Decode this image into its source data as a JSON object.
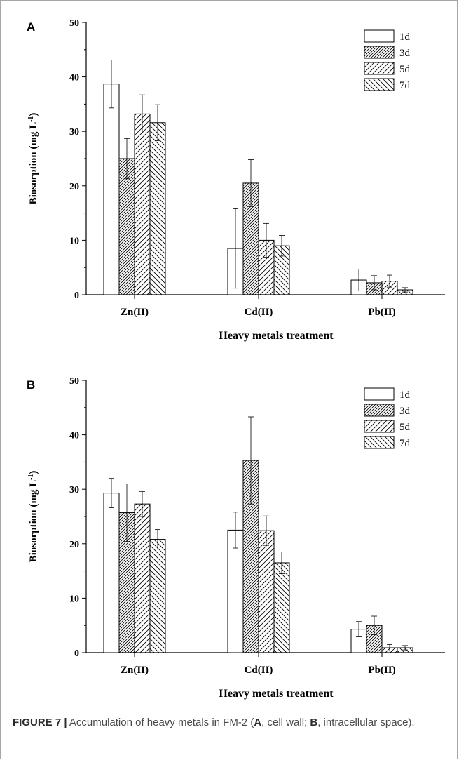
{
  "chart_data": [
    {
      "type": "bar",
      "panel_label": "A",
      "title": "",
      "xlabel": "Heavy metals treatment",
      "ylabel": "Biosorption (mg L",
      "ylabel_sup": "-1",
      "ylabel_close": ")",
      "ylim": [
        0,
        50
      ],
      "yticks": [
        "0",
        "10",
        "20",
        "30",
        "40",
        "50"
      ],
      "categories": [
        "Zn(II)",
        "Cd(II)",
        "Pb(II)"
      ],
      "legend_position": "top-right",
      "series": [
        {
          "name": "1d",
          "values": [
            38.7,
            8.5,
            2.7
          ],
          "errors": [
            4.4,
            7.3,
            2.0
          ]
        },
        {
          "name": "3d",
          "values": [
            25.0,
            20.5,
            2.2
          ],
          "errors": [
            3.7,
            4.3,
            1.3
          ]
        },
        {
          "name": "5d",
          "values": [
            33.2,
            10.0,
            2.5
          ],
          "errors": [
            3.5,
            3.1,
            1.1
          ]
        },
        {
          "name": "7d",
          "values": [
            31.6,
            9.0,
            0.9
          ],
          "errors": [
            3.3,
            1.9,
            0.4
          ]
        }
      ]
    },
    {
      "type": "bar",
      "panel_label": "B",
      "title": "",
      "xlabel": "Heavy metals treatment",
      "ylabel": "Biosorption (mg L",
      "ylabel_sup": "-1",
      "ylabel_close": ")",
      "ylim": [
        0,
        50
      ],
      "yticks": [
        "0",
        "10",
        "20",
        "30",
        "40",
        "50"
      ],
      "categories": [
        "Zn(II)",
        "Cd(II)",
        "Pb(II)"
      ],
      "legend_position": "top-right",
      "series": [
        {
          "name": "1d",
          "values": [
            29.3,
            22.5,
            4.3
          ],
          "errors": [
            2.7,
            3.3,
            1.4
          ]
        },
        {
          "name": "3d",
          "values": [
            25.7,
            35.3,
            5.0
          ],
          "errors": [
            5.3,
            8.0,
            1.7
          ]
        },
        {
          "name": "5d",
          "values": [
            27.3,
            22.4,
            0.9
          ],
          "errors": [
            2.3,
            2.7,
            0.6
          ]
        },
        {
          "name": "7d",
          "values": [
            20.8,
            16.5,
            0.9
          ],
          "errors": [
            1.8,
            2.0,
            0.4
          ]
        }
      ]
    }
  ],
  "caption": {
    "figure_label": "FIGURE 7 |",
    "text_1": " Accumulation of heavy metals in FM-2 (",
    "label_a": "A",
    "text_2": ", cell wall; ",
    "label_b": "B",
    "text_3": ", intracellular space)."
  },
  "style": {
    "bar_stroke": "#000000",
    "caption_color": "#4a4a4a",
    "series_patterns": [
      "none",
      "diag-dense",
      "diag-sparse",
      "diag-reverse"
    ]
  }
}
